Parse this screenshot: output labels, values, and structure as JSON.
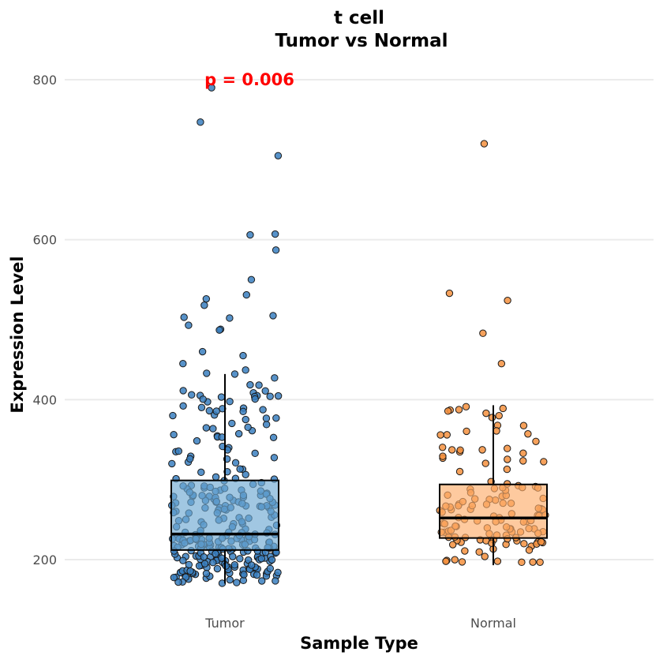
{
  "chart_data": {
    "type": "box",
    "title": "t cell",
    "subtitle": "Tumor vs Normal",
    "xlabel": "Sample Type",
    "ylabel": "Expression Level",
    "ylim": [
      140,
      830
    ],
    "y_ticks": [
      200,
      400,
      600,
      800
    ],
    "grid": "horizontal major",
    "categories": [
      "Tumor",
      "Normal"
    ],
    "colors": {
      "Tumor": "#6fa9d2",
      "Normal": "#fdae6b",
      "Tumor_point": "#3a7fbf",
      "Normal_point": "#f5913e"
    },
    "boxes": [
      {
        "name": "Tumor",
        "whisker_low": 170,
        "q1": 212,
        "median": 232,
        "q3": 299,
        "whisker_high": 432
      },
      {
        "name": "Normal",
        "whisker_low": 193,
        "q1": 227,
        "median": 252,
        "q3": 294,
        "whisker_high": 393
      }
    ],
    "annotation": {
      "text": "p = 0.006",
      "color": "#ff0000",
      "x_category": "Tumor",
      "y": 798
    },
    "points": {
      "Tumor_outliers": [
        790,
        747,
        705,
        607,
        606,
        587,
        550,
        531,
        526,
        518,
        505,
        503,
        502,
        493,
        488,
        487,
        460,
        455,
        445,
        437,
        433,
        432
      ],
      "Normal_outliers": [
        720,
        533,
        524,
        483,
        445
      ]
    }
  }
}
